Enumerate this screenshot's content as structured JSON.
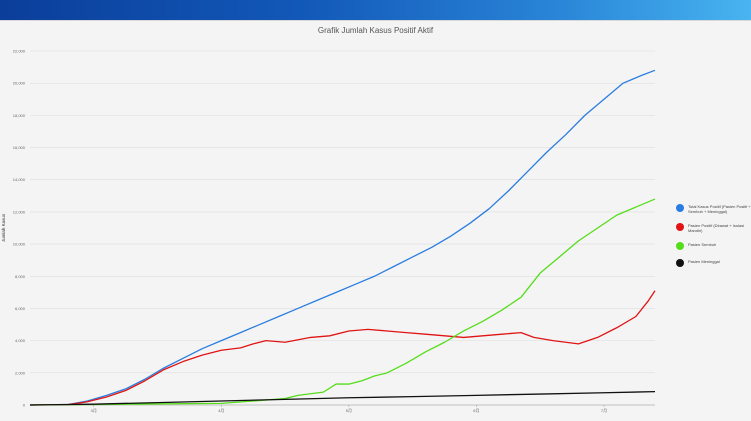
{
  "window": {
    "title_bar_colors": [
      "#0b3e9a",
      "#48b4f0"
    ]
  },
  "chart_data": {
    "type": "line",
    "title": "Grafik Jumlah Kasus Positif Aktif",
    "ylabel": "Jumlah Kasus",
    "xlabel": "",
    "ylim": [
      0,
      22000
    ],
    "yticks": [
      0,
      2000,
      4000,
      6000,
      8000,
      10000,
      12000,
      14000,
      16000,
      18000,
      20000,
      22000
    ],
    "ytick_labels": [
      "0",
      "2,000",
      "4,000",
      "6,000",
      "8,000",
      "10,000",
      "12,000",
      "14,000",
      "16,000",
      "18,000",
      "20,000",
      "22,000"
    ],
    "xlim": [
      0,
      4.9
    ],
    "xticks": [
      0.5,
      1.5,
      2.5,
      3.5,
      4.5
    ],
    "xtick_labels": [
      "3月",
      "4月",
      "5月",
      "6月",
      "7月"
    ],
    "grid": true,
    "legend_position": "right",
    "series": [
      {
        "name": "Total Kasus Positif (Pasien Positif + Sembuh + Meninggal)",
        "color": "#2a7de0",
        "x": [
          0,
          0.3,
          0.45,
          0.6,
          0.75,
          0.9,
          1.05,
          1.2,
          1.35,
          1.5,
          1.65,
          1.8,
          1.95,
          2.1,
          2.25,
          2.4,
          2.55,
          2.7,
          2.85,
          3.0,
          3.15,
          3.3,
          3.45,
          3.6,
          3.75,
          3.9,
          4.05,
          4.2,
          4.35,
          4.5,
          4.65,
          4.8,
          4.9
        ],
        "values": [
          0,
          30,
          250,
          600,
          1000,
          1600,
          2300,
          2900,
          3500,
          4000,
          4500,
          5000,
          5500,
          6000,
          6500,
          7000,
          7500,
          8000,
          8600,
          9200,
          9800,
          10500,
          11300,
          12200,
          13300,
          14500,
          15700,
          16800,
          18000,
          19000,
          20000,
          20500,
          20800
        ]
      },
      {
        "name": "Pasien Positif (Dirawat + Isolasi Mandiri)",
        "color": "#e01414",
        "x": [
          0,
          0.3,
          0.45,
          0.6,
          0.75,
          0.9,
          1.05,
          1.2,
          1.35,
          1.5,
          1.65,
          1.75,
          1.85,
          2.0,
          2.2,
          2.35,
          2.5,
          2.65,
          2.8,
          2.95,
          3.1,
          3.25,
          3.4,
          3.55,
          3.7,
          3.85,
          3.95,
          4.1,
          4.2,
          4.3,
          4.45,
          4.6,
          4.75,
          4.85,
          4.9
        ],
        "values": [
          0,
          20,
          200,
          500,
          900,
          1500,
          2200,
          2700,
          3100,
          3400,
          3550,
          3800,
          4000,
          3900,
          4200,
          4300,
          4600,
          4700,
          4600,
          4500,
          4400,
          4300,
          4200,
          4300,
          4400,
          4500,
          4200,
          4000,
          3900,
          3800,
          4200,
          4800,
          5500,
          6500,
          7100
        ]
      },
      {
        "name": "Pasien Sembuh",
        "color": "#55dd1a",
        "x": [
          0,
          1.5,
          2.0,
          2.1,
          2.3,
          2.4,
          2.5,
          2.6,
          2.7,
          2.8,
          2.95,
          3.1,
          3.25,
          3.4,
          3.55,
          3.7,
          3.85,
          4.0,
          4.15,
          4.3,
          4.45,
          4.6,
          4.75,
          4.9
        ],
        "values": [
          0,
          100,
          400,
          600,
          800,
          1300,
          1300,
          1500,
          1800,
          2000,
          2600,
          3300,
          3900,
          4600,
          5200,
          5900,
          6700,
          8200,
          9200,
          10200,
          11000,
          11800,
          12300,
          12800
        ]
      },
      {
        "name": "Pasien Meninggal",
        "color": "#111111",
        "x": [
          0,
          0.5,
          1.0,
          1.5,
          2.0,
          2.5,
          3.0,
          3.5,
          4.0,
          4.5,
          4.9
        ],
        "values": [
          0,
          50,
          150,
          250,
          350,
          450,
          520,
          600,
          680,
          760,
          830
        ]
      }
    ]
  }
}
